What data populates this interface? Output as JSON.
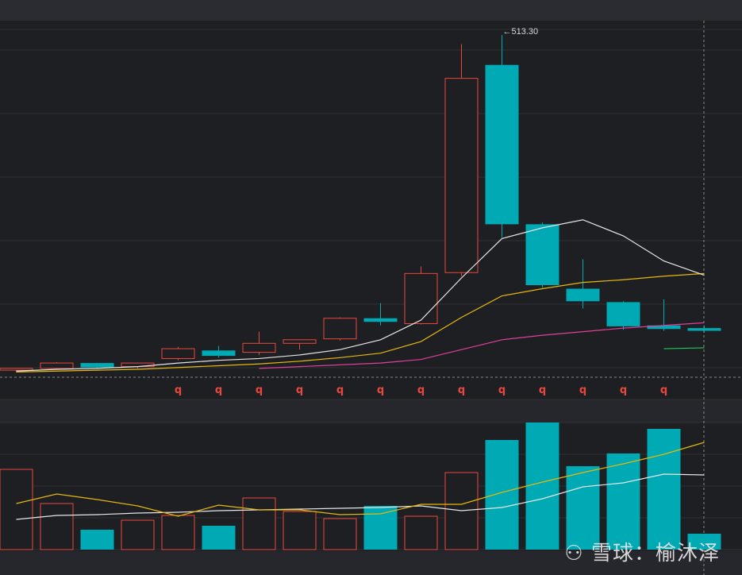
{
  "chart_data": [
    {
      "type": "candlestick",
      "panel": "price",
      "high_annotation": "←513.30",
      "signal_marker": "q",
      "colors": {
        "up": "#e8483c",
        "down": "#00aab5",
        "ma5": "#e6e6e6",
        "ma10": "#e5b80b",
        "ma20": "#e0409a",
        "ma60": "#22c55e"
      },
      "ylim": [
        132,
        517
      ],
      "candles": [
        {
          "o": 139,
          "h": 141,
          "l": 137,
          "c": 141,
          "dir": "up"
        },
        {
          "o": 141,
          "h": 148,
          "l": 140,
          "c": 147,
          "dir": "up"
        },
        {
          "o": 147,
          "h": 147,
          "l": 141,
          "c": 142,
          "dir": "down"
        },
        {
          "o": 143,
          "h": 147,
          "l": 141,
          "c": 147,
          "dir": "up"
        },
        {
          "o": 152,
          "h": 165,
          "l": 150,
          "c": 163,
          "dir": "up"
        },
        {
          "o": 161,
          "h": 166,
          "l": 153,
          "c": 155,
          "dir": "down"
        },
        {
          "o": 159,
          "h": 182,
          "l": 156,
          "c": 169,
          "dir": "up"
        },
        {
          "o": 169,
          "h": 173,
          "l": 162,
          "c": 173,
          "dir": "up"
        },
        {
          "o": 174,
          "h": 198,
          "l": 172,
          "c": 197,
          "dir": "up"
        },
        {
          "o": 197,
          "h": 214,
          "l": 189,
          "c": 193,
          "dir": "down"
        },
        {
          "o": 191,
          "h": 255,
          "l": 190,
          "c": 247,
          "dir": "up"
        },
        {
          "o": 248,
          "h": 503,
          "l": 244,
          "c": 465,
          "dir": "up"
        },
        {
          "o": 480,
          "h": 513.3,
          "l": 287,
          "c": 302,
          "dir": "down"
        },
        {
          "o": 302,
          "h": 304,
          "l": 231,
          "c": 234,
          "dir": "down"
        },
        {
          "o": 230,
          "h": 263,
          "l": 208,
          "c": 216,
          "dir": "down"
        },
        {
          "o": 215,
          "h": 216,
          "l": 184,
          "c": 188,
          "dir": "down"
        },
        {
          "o": 189,
          "h": 218,
          "l": 183,
          "c": 185,
          "dir": "down"
        },
        {
          "o": 186,
          "h": 189,
          "l": 181,
          "c": 183,
          "dir": "down"
        }
      ],
      "ma5": [
        138,
        140,
        141,
        143,
        147,
        150,
        152,
        156,
        162,
        173,
        195,
        242,
        286,
        298,
        307,
        289,
        261,
        245
      ],
      "ma10": [
        137,
        138,
        139,
        140,
        142,
        144,
        146,
        149,
        153,
        158,
        171,
        198,
        222,
        230,
        237,
        240,
        244,
        247
      ],
      "ma20": [
        null,
        null,
        null,
        null,
        null,
        null,
        141,
        143,
        145,
        147,
        151,
        162,
        173,
        178,
        182,
        186,
        189,
        192
      ],
      "ma60": [
        null,
        null,
        null,
        null,
        null,
        null,
        null,
        null,
        null,
        null,
        null,
        null,
        null,
        null,
        null,
        null,
        163,
        164
      ],
      "signals": [
        4,
        5,
        6,
        7,
        8,
        9,
        10,
        11,
        12,
        13,
        14,
        15,
        16
      ]
    },
    {
      "type": "bar",
      "panel": "volume",
      "ylim": [
        0,
        160
      ],
      "values": [
        101,
        58,
        25,
        37,
        43,
        30,
        65,
        48,
        39,
        55,
        42,
        97,
        138,
        160,
        105,
        121,
        152,
        20
      ],
      "dir": [
        "up",
        "up",
        "down",
        "up",
        "up",
        "down",
        "up",
        "up",
        "up",
        "down",
        "up",
        "up",
        "down",
        "down",
        "down",
        "down",
        "down",
        "down"
      ],
      "ma_white": [
        38,
        43,
        44,
        46,
        47,
        49,
        50,
        51,
        52,
        53,
        55,
        49,
        53,
        64,
        79,
        84,
        95,
        94
      ],
      "ma_yellow": [
        58,
        70,
        63,
        55,
        42,
        56,
        50,
        50,
        44,
        45,
        57,
        57,
        72,
        85,
        97,
        108,
        120,
        135
      ]
    }
  ],
  "watermark": {
    "logo": "snowball-logo",
    "text": "雪球：榆沐泽"
  }
}
